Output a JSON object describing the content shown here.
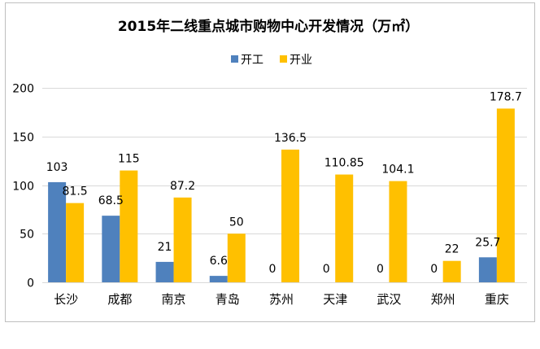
{
  "chart_data": {
    "type": "bar",
    "title": "2015年二线重点城市购物中心开发情况（万㎡）",
    "categories": [
      "长沙",
      "成都",
      "南京",
      "青岛",
      "苏州",
      "天津",
      "武汉",
      "郑州",
      "重庆"
    ],
    "series": [
      {
        "name": "开工",
        "color": "#4f81bd",
        "values": [
          103,
          68.5,
          21,
          6.6,
          0,
          0,
          0,
          0,
          25.7
        ],
        "labels": [
          "103",
          "68.5",
          "21",
          "6.6",
          "0",
          "0",
          "0",
          "0",
          "25.7"
        ]
      },
      {
        "name": "开业",
        "color": "#ffc000",
        "values": [
          81.5,
          115,
          87.2,
          50,
          136.5,
          110.85,
          104.1,
          22,
          178.7
        ],
        "labels": [
          "81.5",
          "115",
          "87.2",
          "50",
          "136.5",
          "110.85",
          "104.1",
          "22",
          "178.7"
        ]
      }
    ],
    "y_ticks": [
      "0",
      "50",
      "100",
      "150",
      "200"
    ],
    "ylim": [
      0,
      200
    ],
    "legend_position": "top-center",
    "grid": true
  }
}
